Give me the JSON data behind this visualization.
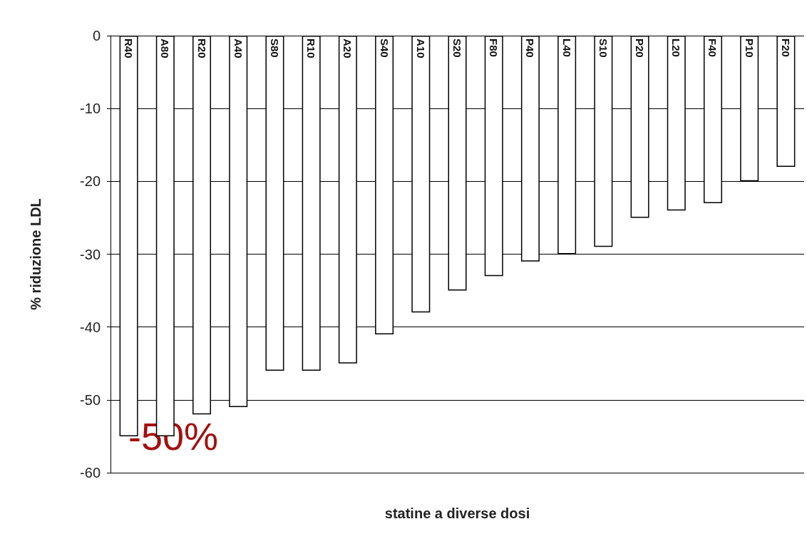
{
  "chart_data": {
    "type": "bar",
    "categories": [
      "R40",
      "A80",
      "R20",
      "A40",
      "S80",
      "R10",
      "A20",
      "S40",
      "A10",
      "S20",
      "F80",
      "P40",
      "L40",
      "S10",
      "P20",
      "L20",
      "F40",
      "P10",
      "F20"
    ],
    "values": [
      -55,
      -55,
      -52,
      -51,
      -46,
      -46,
      -45,
      -41,
      -38,
      -35,
      -33,
      -31,
      -30,
      -29,
      -25,
      -24,
      -23,
      -20,
      -18
    ],
    "color": "#ffffff",
    "xlabel": "statine a diverse dosi",
    "ylabel": "% riduzione LDL",
    "ylim": [
      -60,
      0
    ],
    "yticks": [
      -60,
      -50,
      -40,
      -30,
      -20,
      -10,
      0
    ],
    "grid": "y",
    "annotations": [
      "-50%"
    ]
  }
}
